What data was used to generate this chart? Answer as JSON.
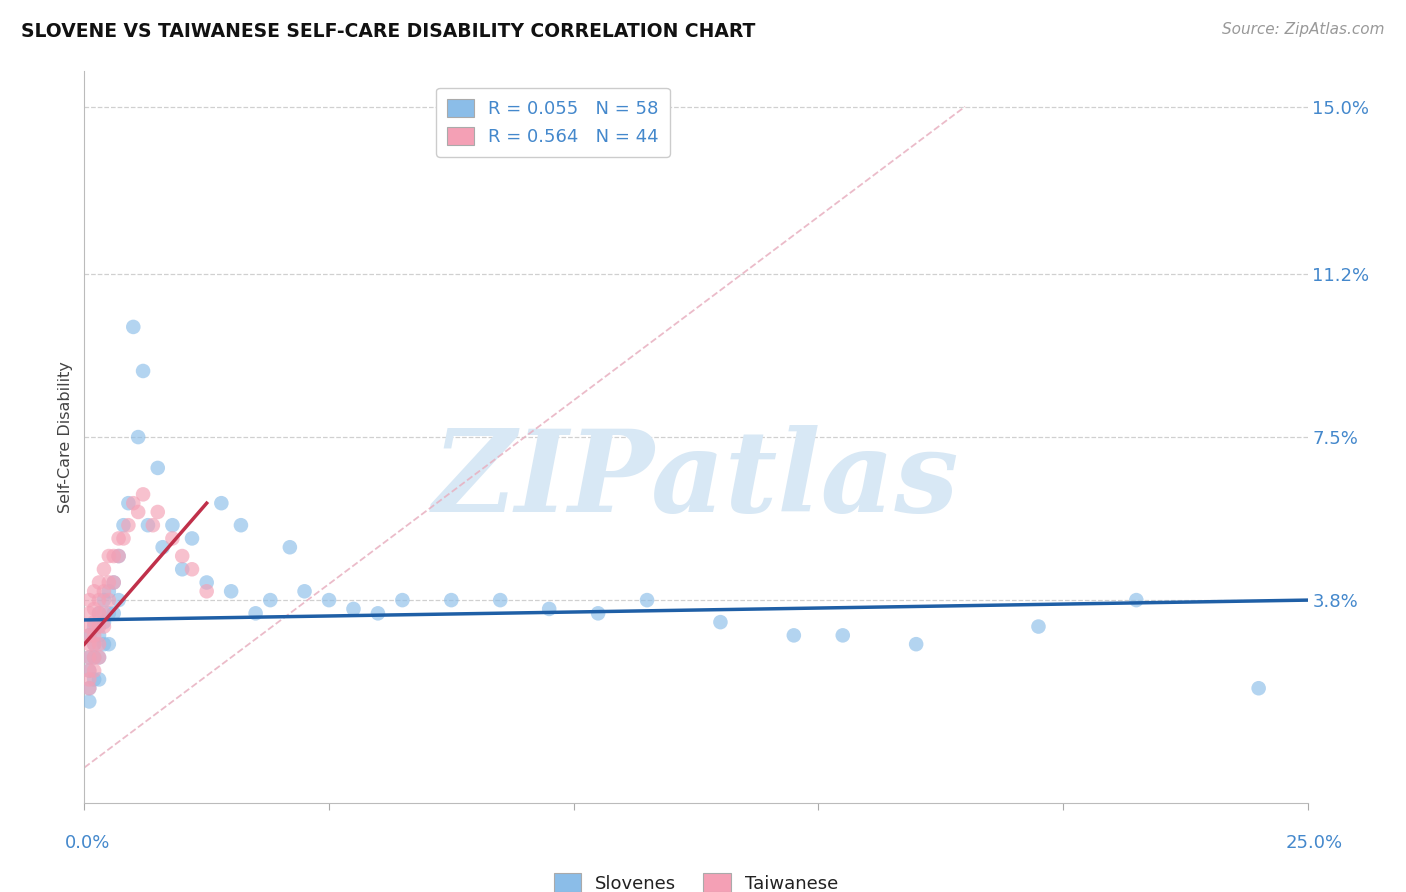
{
  "title": "SLOVENE VS TAIWANESE SELF-CARE DISABILITY CORRELATION CHART",
  "source": "Source: ZipAtlas.com",
  "ylabel": "Self-Care Disability",
  "xlim": [
    0.0,
    0.25
  ],
  "ylim": [
    -0.008,
    0.158
  ],
  "slovene_R": 0.055,
  "slovene_N": 58,
  "taiwanese_R": 0.564,
  "taiwanese_N": 44,
  "slovene_color": "#8bbde8",
  "taiwanese_color": "#f4a0b5",
  "slovene_line_color": "#1f5fa6",
  "taiwanese_line_color": "#c0304a",
  "diagonal_color": "#e8b0c0",
  "background_color": "#ffffff",
  "watermark": "ZIPatlas",
  "watermark_color": "#d8e8f5",
  "ytick_positions": [
    0.038,
    0.075,
    0.112,
    0.15
  ],
  "ytick_labels": [
    "3.8%",
    "7.5%",
    "11.2%",
    "15.0%"
  ],
  "xtick_positions": [
    0.0,
    0.05,
    0.1,
    0.15,
    0.2,
    0.25
  ],
  "slovene_x": [
    0.001,
    0.001,
    0.001,
    0.001,
    0.001,
    0.002,
    0.002,
    0.002,
    0.002,
    0.003,
    0.003,
    0.003,
    0.003,
    0.004,
    0.004,
    0.004,
    0.005,
    0.005,
    0.005,
    0.006,
    0.006,
    0.007,
    0.007,
    0.008,
    0.009,
    0.01,
    0.011,
    0.012,
    0.013,
    0.015,
    0.016,
    0.018,
    0.02,
    0.022,
    0.025,
    0.028,
    0.03,
    0.032,
    0.035,
    0.038,
    0.042,
    0.045,
    0.05,
    0.055,
    0.06,
    0.065,
    0.075,
    0.085,
    0.095,
    0.105,
    0.115,
    0.13,
    0.145,
    0.155,
    0.17,
    0.195,
    0.215,
    0.24
  ],
  "slovene_y": [
    0.03,
    0.025,
    0.022,
    0.018,
    0.015,
    0.032,
    0.028,
    0.025,
    0.02,
    0.035,
    0.03,
    0.025,
    0.02,
    0.038,
    0.033,
    0.028,
    0.04,
    0.035,
    0.028,
    0.042,
    0.035,
    0.048,
    0.038,
    0.055,
    0.06,
    0.1,
    0.075,
    0.09,
    0.055,
    0.068,
    0.05,
    0.055,
    0.045,
    0.052,
    0.042,
    0.06,
    0.04,
    0.055,
    0.035,
    0.038,
    0.05,
    0.04,
    0.038,
    0.036,
    0.035,
    0.038,
    0.038,
    0.038,
    0.036,
    0.035,
    0.038,
    0.033,
    0.03,
    0.03,
    0.028,
    0.032,
    0.038,
    0.018
  ],
  "taiwanese_x": [
    0.001,
    0.001,
    0.001,
    0.001,
    0.001,
    0.001,
    0.001,
    0.001,
    0.001,
    0.002,
    0.002,
    0.002,
    0.002,
    0.002,
    0.002,
    0.002,
    0.003,
    0.003,
    0.003,
    0.003,
    0.003,
    0.003,
    0.004,
    0.004,
    0.004,
    0.004,
    0.005,
    0.005,
    0.005,
    0.006,
    0.006,
    0.007,
    0.007,
    0.008,
    0.009,
    0.01,
    0.011,
    0.012,
    0.014,
    0.015,
    0.018,
    0.02,
    0.022,
    0.025
  ],
  "taiwanese_y": [
    0.018,
    0.02,
    0.022,
    0.025,
    0.028,
    0.03,
    0.032,
    0.035,
    0.038,
    0.022,
    0.025,
    0.028,
    0.03,
    0.033,
    0.036,
    0.04,
    0.025,
    0.028,
    0.032,
    0.035,
    0.038,
    0.042,
    0.032,
    0.035,
    0.04,
    0.045,
    0.038,
    0.042,
    0.048,
    0.042,
    0.048,
    0.048,
    0.052,
    0.052,
    0.055,
    0.06,
    0.058,
    0.062,
    0.055,
    0.058,
    0.052,
    0.048,
    0.045,
    0.04
  ]
}
